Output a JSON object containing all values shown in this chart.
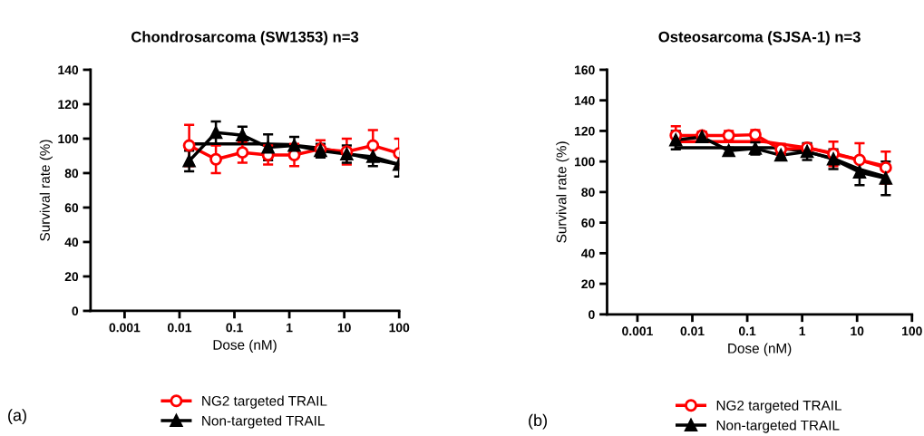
{
  "chart_data": [
    {
      "type": "line",
      "title": "Chondrosarcoma (SW1353) n=3",
      "xlabel": "Dose (nM)",
      "ylabel": "Survival rate (%)",
      "log": "x",
      "xlim": [
        0.00024,
        100
      ],
      "xticks": [
        0.001,
        0.01,
        0.1,
        1,
        10,
        100
      ],
      "ylim": [
        0,
        140
      ],
      "yticks": [
        0,
        20,
        40,
        60,
        80,
        100,
        120,
        140
      ],
      "grid": false,
      "legend": "bottom",
      "annotations": [
        "(a)"
      ],
      "series": [
        {
          "type": "line",
          "color": "#000000",
          "marker": "none",
          "x": [
            0.015,
            0.3,
            1,
            3.7,
            11,
            33,
            100
          ],
          "values": [
            97,
            97,
            96.5,
            94.5,
            91.5,
            88,
            85
          ]
        },
        {
          "name": "NG2 targeted TRAIL",
          "color": "#ff0000",
          "marker": "circle",
          "x": [
            0.015,
            0.046,
            0.14,
            0.41,
            1.23,
            3.7,
            11.1,
            33.3,
            100
          ],
          "values": [
            96,
            88,
            92,
            90.5,
            90.5,
            94,
            92.5,
            96,
            91.5
          ],
          "errors": [
            12,
            8,
            6,
            5.5,
            6.5,
            5,
            7.5,
            9,
            8.5
          ]
        },
        {
          "name": "Non-targeted TRAIL",
          "color": "#000000",
          "marker": "triangle",
          "x": [
            0.015,
            0.046,
            0.14,
            0.41,
            1.23,
            3.7,
            11.1,
            33.3,
            100
          ],
          "values": [
            87,
            103.5,
            102,
            95,
            96,
            93,
            91,
            89.5,
            85
          ],
          "errors": [
            6,
            6.5,
            5,
            7.5,
            5,
            4,
            5,
            5.5,
            7
          ]
        }
      ]
    },
    {
      "type": "line",
      "title": "Osteosarcoma (SJSA-1) n=3",
      "xlabel": "Dose (nM)",
      "ylabel": "Survival rate (%)",
      "log": "x",
      "xlim": [
        0.00028,
        100
      ],
      "xticks": [
        0.001,
        0.01,
        0.1,
        1,
        10,
        100
      ],
      "ylim": [
        0,
        160
      ],
      "yticks": [
        0,
        20,
        40,
        60,
        80,
        100,
        120,
        140,
        160
      ],
      "grid": false,
      "legend": "bottom",
      "annotations": [
        "(b)"
      ],
      "series": [
        {
          "type": "line",
          "color": "#000000",
          "marker": "none",
          "x": [
            0.005,
            0.3,
            1,
            3.7,
            11,
            33
          ],
          "values": [
            109,
            109,
            107,
            102,
            95,
            90
          ]
        },
        {
          "type": "line",
          "color": "#ff0000",
          "marker": "none",
          "x": [
            0.005,
            0.2,
            0.5,
            1.2,
            3.7,
            11,
            33
          ],
          "values": [
            113,
            113,
            111,
            109,
            105.5,
            101,
            97
          ]
        },
        {
          "name": "NG2 targeted TRAIL",
          "color": "#ff0000",
          "marker": "circle",
          "x": [
            0.005,
            0.015,
            0.046,
            0.14,
            0.41,
            1.23,
            3.7,
            11.1,
            33.3
          ],
          "values": [
            117,
            117,
            117,
            117.5,
            108,
            109,
            105,
            101,
            96
          ],
          "errors": [
            6,
            2.5,
            3,
            3,
            3.5,
            2,
            8,
            11,
            10.5
          ]
        },
        {
          "name": "Non-targeted TRAIL",
          "color": "#000000",
          "marker": "triangle",
          "x": [
            0.005,
            0.015,
            0.046,
            0.14,
            0.41,
            1.23,
            3.7,
            11.1,
            33.3
          ],
          "values": [
            114,
            116,
            107,
            108.5,
            104,
            106.5,
            101.5,
            93,
            89
          ],
          "errors": [
            6,
            2,
            2,
            4,
            2,
            5.5,
            6.5,
            8.5,
            11
          ]
        }
      ]
    }
  ]
}
